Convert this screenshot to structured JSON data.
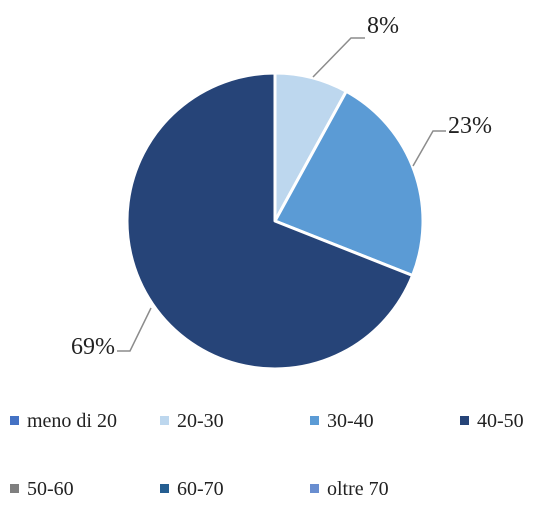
{
  "chart_data": {
    "type": "pie",
    "title": "",
    "slices": [
      {
        "label": "meno di 20",
        "value": 0,
        "color": "#4472C4"
      },
      {
        "label": "20-30",
        "value": 8,
        "color": "#BDD7EE"
      },
      {
        "label": "30-40",
        "value": 23,
        "color": "#5B9BD5"
      },
      {
        "label": "40-50",
        "value": 69,
        "color": "#264478"
      },
      {
        "label": "50-60",
        "value": 0,
        "color": "#7F7F7F"
      },
      {
        "label": "60-70",
        "value": 0,
        "color": "#255E91"
      },
      {
        "label": "oltre 70",
        "value": 0,
        "color": "#698ED0"
      }
    ],
    "data_labels": [
      "8%",
      "23%",
      "69%"
    ],
    "legend_position": "bottom"
  }
}
